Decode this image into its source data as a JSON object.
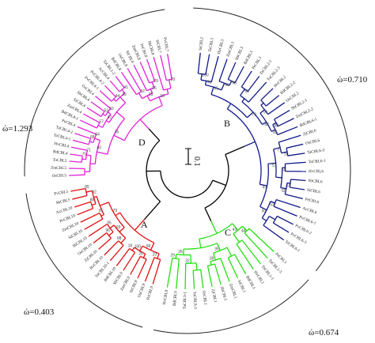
{
  "clade_labels": [
    "A",
    "B",
    "C",
    "D"
  ],
  "omega_labels": [
    "ώ=0.710",
    "ώ=1.293",
    "ώ=0.403",
    "ώ=0.674"
  ],
  "scale_label": "0.1",
  "colors": {
    "A": "#e01010",
    "B": "#101a8a",
    "C": "#22e010",
    "D": "#e020d8",
    "backbone": "#000000"
  },
  "leaves_B": [
    "SiCBL2",
    "TaCBL3",
    "HvCBL3",
    "ZmCBL3",
    "SbCBL3",
    "BdCBL3",
    "PeCBL3",
    "TaCBL2-1",
    "TaCBL2-3",
    "HvCBL2",
    "BdCBL2-2",
    "OsCBL2",
    "SbCBL2-1",
    "ZmCBL2-2",
    "BdCBL6-1",
    "ZjCBL6",
    "OsCBL6",
    "TaCBL6-3",
    "TaCBL6-1",
    "HvCBL6",
    "SbCBL6",
    "SiCBL6",
    "PeCBL6",
    "AcCBL6",
    "PvCBL6-1",
    "PvCBL6-2",
    "PvCBL6-3",
    "SiCBL6-1"
  ],
  "leaves_C": [
    "PeCBL1",
    "TaCBL1-3",
    "TaCBL1-1",
    "HvCBL1",
    "BdCBL1",
    "SiCBL1",
    "ZmCBL1",
    "SbCBL1",
    "ZjCBL1",
    "OsCBL1",
    "TaCBL9-3",
    "TaCBL9-1",
    "BdCBL9",
    "HvCBL9"
  ],
  "leaves_A": [
    "PeCBL9",
    "OsCBL9",
    "SiCBL9",
    "ZmCBL9",
    "SbCBL9",
    "BdCBL10",
    "TaCBL10-1",
    "HvCBL10",
    "ZjCBL10",
    "OsCBL10",
    "SbCBL10",
    "SiCBL10",
    "ZmCBL10",
    "PvCBL10",
    "AcCBL10",
    "SbCBL5",
    "PvCBL5"
  ],
  "leaves_D": [
    "OsCBL5",
    "ZmCBL5",
    "TaCBL5",
    "BdCBL4",
    "HvCBL4",
    "TaCBL4-1",
    "TaCBL4-2",
    "PeCBL4",
    "BdCBL4-1",
    "ZmCBL4",
    "SiCBL4",
    "SbCBL4",
    "OsCBL4",
    "PvCBL4-1",
    "PvCBL4-2",
    "AcCBL4",
    "TaCBL1-2",
    "BdCBL8",
    "OsCBL8",
    "SiCBL8",
    "ZmCBL8",
    "PeCBL8",
    "SbCBL8",
    "SiCBL7",
    "PvCBL7"
  ],
  "bootstrap_values": [
    "100",
    "99",
    "98",
    "96",
    "95",
    "93",
    "91",
    "88",
    "85",
    "82",
    "79",
    "75",
    "71",
    "68",
    "64",
    "60",
    "57",
    "53",
    "50",
    "47",
    "44",
    "41",
    "39",
    "35",
    "32",
    "29",
    "26",
    "23",
    "20",
    "18"
  ]
}
